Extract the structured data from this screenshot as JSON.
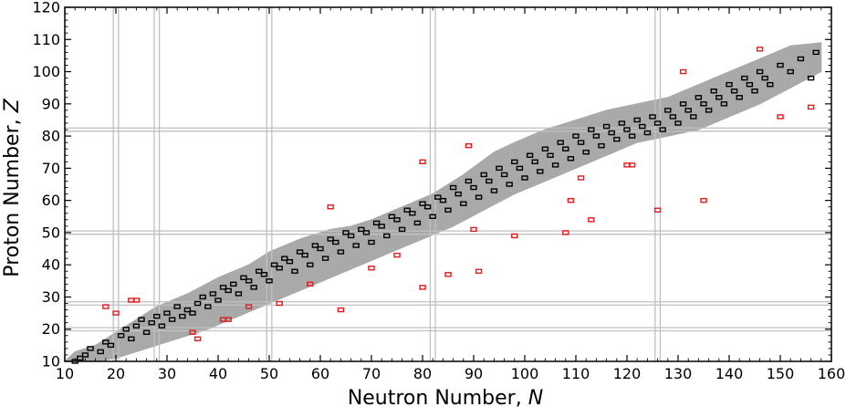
{
  "chart_data": {
    "type": "scatter",
    "xlabel": "Neutron Number, ",
    "xlabel_symbol": "N",
    "ylabel": "Proton Number, ",
    "ylabel_symbol": "Z",
    "xlim": [
      10,
      160
    ],
    "ylim": [
      10,
      120
    ],
    "x_ticks": [
      10,
      20,
      30,
      40,
      50,
      60,
      70,
      80,
      90,
      100,
      110,
      120,
      130,
      140,
      150,
      160
    ],
    "y_ticks": [
      10,
      20,
      30,
      40,
      50,
      60,
      70,
      80,
      90,
      100,
      110,
      120
    ],
    "magic_N": [
      20,
      28,
      50,
      82,
      126
    ],
    "magic_Z": [
      20,
      28,
      50,
      82
    ],
    "grid": false,
    "legend": "none",
    "colors": {
      "band": "#a9a9a9",
      "black_marker": "#000000",
      "red_marker": "#e41a1c",
      "magic_line": "#c0c0c0"
    },
    "band_outline": [
      [
        10,
        10
      ],
      [
        12,
        13
      ],
      [
        16,
        15
      ],
      [
        20,
        19
      ],
      [
        24,
        23
      ],
      [
        28,
        27
      ],
      [
        34,
        31
      ],
      [
        40,
        36
      ],
      [
        46,
        40
      ],
      [
        50,
        44
      ],
      [
        56,
        48
      ],
      [
        62,
        51
      ],
      [
        66,
        52
      ],
      [
        70,
        54
      ],
      [
        76,
        58
      ],
      [
        82,
        62
      ],
      [
        88,
        68
      ],
      [
        94,
        75
      ],
      [
        98,
        78
      ],
      [
        104,
        82
      ],
      [
        110,
        85
      ],
      [
        116,
        88
      ],
      [
        122,
        90
      ],
      [
        128,
        92
      ],
      [
        134,
        96
      ],
      [
        140,
        100
      ],
      [
        146,
        104
      ],
      [
        152,
        108
      ],
      [
        158,
        109
      ],
      [
        158,
        100
      ],
      [
        152,
        95
      ],
      [
        146,
        90
      ],
      [
        140,
        86
      ],
      [
        134,
        82
      ],
      [
        128,
        80
      ],
      [
        122,
        78
      ],
      [
        116,
        74
      ],
      [
        110,
        70
      ],
      [
        104,
        66
      ],
      [
        98,
        62
      ],
      [
        92,
        57
      ],
      [
        86,
        52
      ],
      [
        80,
        48
      ],
      [
        74,
        44
      ],
      [
        68,
        40
      ],
      [
        62,
        36
      ],
      [
        56,
        32
      ],
      [
        50,
        28
      ],
      [
        44,
        24
      ],
      [
        38,
        20
      ],
      [
        32,
        17
      ],
      [
        26,
        14
      ],
      [
        20,
        11
      ],
      [
        16,
        10
      ]
    ],
    "series": [
      {
        "marker": "black-open-rect",
        "points": [
          [
            12,
            10
          ],
          [
            13,
            11
          ],
          [
            14,
            12
          ],
          [
            15,
            14
          ],
          [
            17,
            13
          ],
          [
            18,
            16
          ],
          [
            19,
            15
          ],
          [
            21,
            18
          ],
          [
            22,
            20
          ],
          [
            23,
            17
          ],
          [
            24,
            21
          ],
          [
            25,
            23
          ],
          [
            26,
            19
          ],
          [
            27,
            22
          ],
          [
            28,
            24
          ],
          [
            29,
            21
          ],
          [
            30,
            25
          ],
          [
            31,
            23
          ],
          [
            32,
            27
          ],
          [
            33,
            24
          ],
          [
            34,
            26
          ],
          [
            35,
            25
          ],
          [
            36,
            28
          ],
          [
            37,
            30
          ],
          [
            38,
            27
          ],
          [
            39,
            31
          ],
          [
            40,
            29
          ],
          [
            41,
            33
          ],
          [
            42,
            32
          ],
          [
            43,
            34
          ],
          [
            44,
            31
          ],
          [
            45,
            36
          ],
          [
            46,
            35
          ],
          [
            47,
            33
          ],
          [
            48,
            38
          ],
          [
            49,
            37
          ],
          [
            50,
            35
          ],
          [
            51,
            40
          ],
          [
            52,
            39
          ],
          [
            53,
            42
          ],
          [
            54,
            41
          ],
          [
            55,
            38
          ],
          [
            56,
            44
          ],
          [
            57,
            43
          ],
          [
            58,
            40
          ],
          [
            59,
            46
          ],
          [
            60,
            45
          ],
          [
            61,
            42
          ],
          [
            62,
            48
          ],
          [
            63,
            47
          ],
          [
            64,
            44
          ],
          [
            65,
            50
          ],
          [
            66,
            49
          ],
          [
            67,
            46
          ],
          [
            68,
            51
          ],
          [
            69,
            50
          ],
          [
            70,
            47
          ],
          [
            71,
            53
          ],
          [
            72,
            52
          ],
          [
            73,
            49
          ],
          [
            74,
            55
          ],
          [
            75,
            54
          ],
          [
            76,
            51
          ],
          [
            77,
            57
          ],
          [
            78,
            56
          ],
          [
            79,
            53
          ],
          [
            80,
            59
          ],
          [
            81,
            58
          ],
          [
            82,
            55
          ],
          [
            83,
            61
          ],
          [
            84,
            60
          ],
          [
            85,
            57
          ],
          [
            86,
            64
          ],
          [
            87,
            62
          ],
          [
            88,
            59
          ],
          [
            89,
            66
          ],
          [
            90,
            64
          ],
          [
            91,
            61
          ],
          [
            92,
            68
          ],
          [
            93,
            66
          ],
          [
            94,
            63
          ],
          [
            95,
            70
          ],
          [
            96,
            68
          ],
          [
            97,
            65
          ],
          [
            98,
            72
          ],
          [
            99,
            70
          ],
          [
            100,
            67
          ],
          [
            101,
            74
          ],
          [
            102,
            72
          ],
          [
            103,
            69
          ],
          [
            104,
            76
          ],
          [
            105,
            74
          ],
          [
            106,
            71
          ],
          [
            107,
            78
          ],
          [
            108,
            76
          ],
          [
            109,
            73
          ],
          [
            110,
            80
          ],
          [
            111,
            78
          ],
          [
            112,
            75
          ],
          [
            113,
            82
          ],
          [
            114,
            80
          ],
          [
            115,
            77
          ],
          [
            116,
            83
          ],
          [
            117,
            81
          ],
          [
            118,
            79
          ],
          [
            119,
            84
          ],
          [
            120,
            82
          ],
          [
            121,
            80
          ],
          [
            122,
            85
          ],
          [
            123,
            83
          ],
          [
            124,
            81
          ],
          [
            125,
            86
          ],
          [
            126,
            84
          ],
          [
            127,
            82
          ],
          [
            128,
            88
          ],
          [
            129,
            86
          ],
          [
            130,
            84
          ],
          [
            131,
            90
          ],
          [
            132,
            88
          ],
          [
            133,
            86
          ],
          [
            134,
            92
          ],
          [
            135,
            90
          ],
          [
            136,
            88
          ],
          [
            137,
            94
          ],
          [
            138,
            92
          ],
          [
            139,
            90
          ],
          [
            140,
            96
          ],
          [
            141,
            94
          ],
          [
            142,
            92
          ],
          [
            143,
            98
          ],
          [
            144,
            96
          ],
          [
            145,
            94
          ],
          [
            146,
            100
          ],
          [
            147,
            98
          ],
          [
            148,
            96
          ],
          [
            150,
            102
          ],
          [
            152,
            100
          ],
          [
            154,
            104
          ],
          [
            156,
            98
          ],
          [
            157,
            106
          ]
        ]
      },
      {
        "marker": "red-open-rect",
        "points": [
          [
            18,
            27
          ],
          [
            20,
            25
          ],
          [
            23,
            29
          ],
          [
            24,
            29
          ],
          [
            35,
            19
          ],
          [
            36,
            17
          ],
          [
            41,
            23
          ],
          [
            42,
            23
          ],
          [
            46,
            27
          ],
          [
            52,
            28
          ],
          [
            58,
            34
          ],
          [
            62,
            58
          ],
          [
            64,
            26
          ],
          [
            70,
            39
          ],
          [
            75,
            43
          ],
          [
            80,
            33
          ],
          [
            80,
            72
          ],
          [
            85,
            37
          ],
          [
            89,
            77
          ],
          [
            90,
            51
          ],
          [
            91,
            38
          ],
          [
            98,
            49
          ],
          [
            108,
            50
          ],
          [
            109,
            60
          ],
          [
            111,
            67
          ],
          [
            113,
            54
          ],
          [
            120,
            71
          ],
          [
            121,
            71
          ],
          [
            126,
            57
          ],
          [
            131,
            100
          ],
          [
            135,
            60
          ],
          [
            146,
            107
          ],
          [
            150,
            86
          ],
          [
            156,
            89
          ]
        ]
      }
    ]
  }
}
